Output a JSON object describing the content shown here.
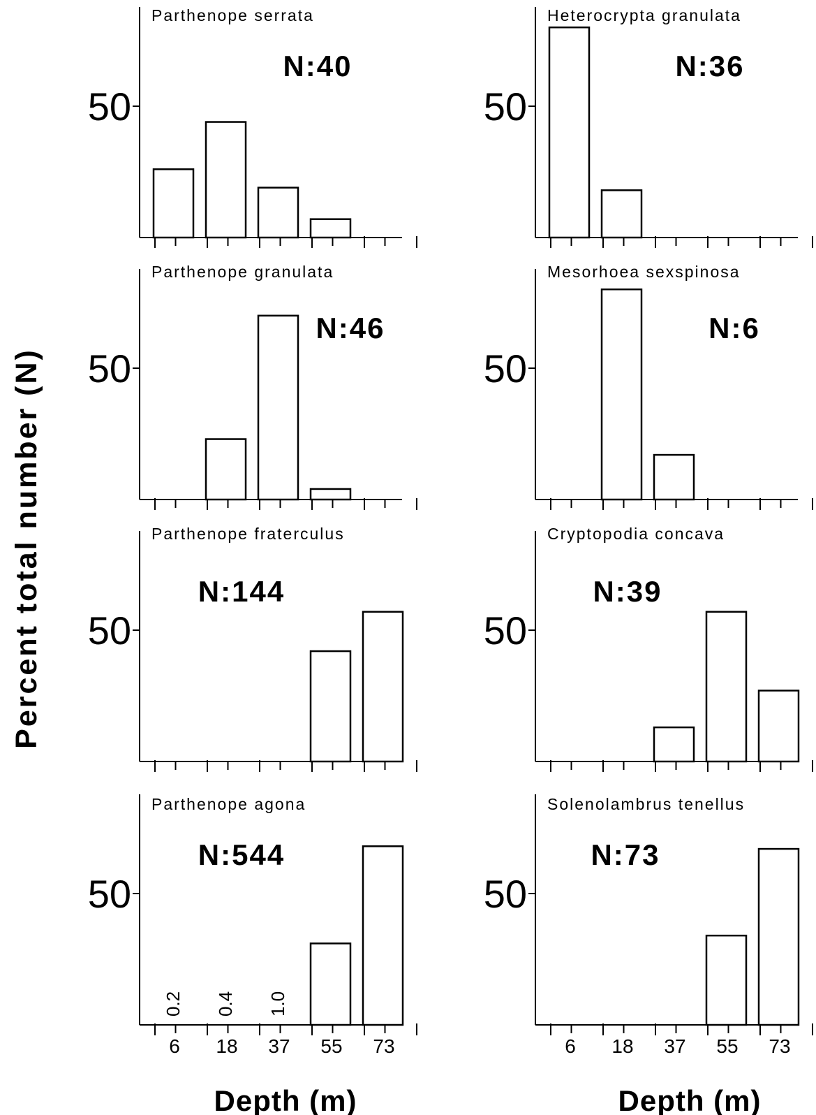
{
  "figure": {
    "ylabel": "Percent total number (N)",
    "xlabel": "Depth (m)",
    "ytick": "50"
  },
  "chart_data": [
    {
      "type": "bar",
      "title": "Parthenope serrata",
      "n_label": "N:40",
      "categories": [
        "6",
        "18",
        "37",
        "55",
        "73"
      ],
      "values": [
        26,
        44,
        19,
        7,
        0
      ],
      "ytick": [
        50
      ],
      "xlabel": "",
      "ylabel": "Percent total number (N)"
    },
    {
      "type": "bar",
      "title": "Heterocrypta granulata",
      "n_label": "N:36",
      "categories": [
        "6",
        "18",
        "37",
        "55",
        "73"
      ],
      "values": [
        80,
        18,
        0,
        0,
        0
      ],
      "ytick": [
        50
      ],
      "xlabel": "",
      "ylabel": "Percent total number (N)"
    },
    {
      "type": "bar",
      "title": "Parthenope granulata",
      "n_label": "N:46",
      "categories": [
        "6",
        "18",
        "37",
        "55",
        "73"
      ],
      "values": [
        0,
        23,
        70,
        4,
        0
      ],
      "ytick": [
        50
      ],
      "xlabel": "",
      "ylabel": "Percent total number (N)"
    },
    {
      "type": "bar",
      "title": "Mesorhoea sexspinosa",
      "n_label": "N:6",
      "categories": [
        "6",
        "18",
        "37",
        "55",
        "73"
      ],
      "values": [
        0,
        80,
        17,
        0,
        0
      ],
      "ytick": [
        50
      ],
      "xlabel": "",
      "ylabel": "Percent total number (N)"
    },
    {
      "type": "bar",
      "title": "Parthenope fraterculus",
      "n_label": "N:144",
      "categories": [
        "6",
        "18",
        "37",
        "55",
        "73"
      ],
      "values": [
        0,
        0,
        0,
        42,
        57
      ],
      "ytick": [
        50
      ],
      "xlabel": "",
      "ylabel": "Percent total number (N)"
    },
    {
      "type": "bar",
      "title": "Cryptopodia concava",
      "n_label": "N:39",
      "categories": [
        "6",
        "18",
        "37",
        "55",
        "73"
      ],
      "values": [
        0,
        0,
        13,
        57,
        27
      ],
      "ytick": [
        50
      ],
      "xlabel": "",
      "ylabel": "Percent total number (N)"
    },
    {
      "type": "bar",
      "title": "Parthenope agona",
      "n_label": "N:544",
      "categories": [
        "6",
        "18",
        "37",
        "55",
        "73"
      ],
      "values": [
        0.2,
        0.4,
        1.0,
        31,
        68
      ],
      "value_labels": [
        "0.2",
        "0.4",
        "1.0",
        "",
        ""
      ],
      "ytick": [
        50
      ],
      "xlabel": "Depth (m)",
      "ylabel": "Percent total number (N)"
    },
    {
      "type": "bar",
      "title": "Solenolambrus tenellus",
      "n_label": "N:73",
      "categories": [
        "6",
        "18",
        "37",
        "55",
        "73"
      ],
      "values": [
        0,
        0,
        0,
        34,
        67
      ],
      "ytick": [
        50
      ],
      "xlabel": "Depth (m)",
      "ylabel": "Percent total number (N)"
    }
  ]
}
